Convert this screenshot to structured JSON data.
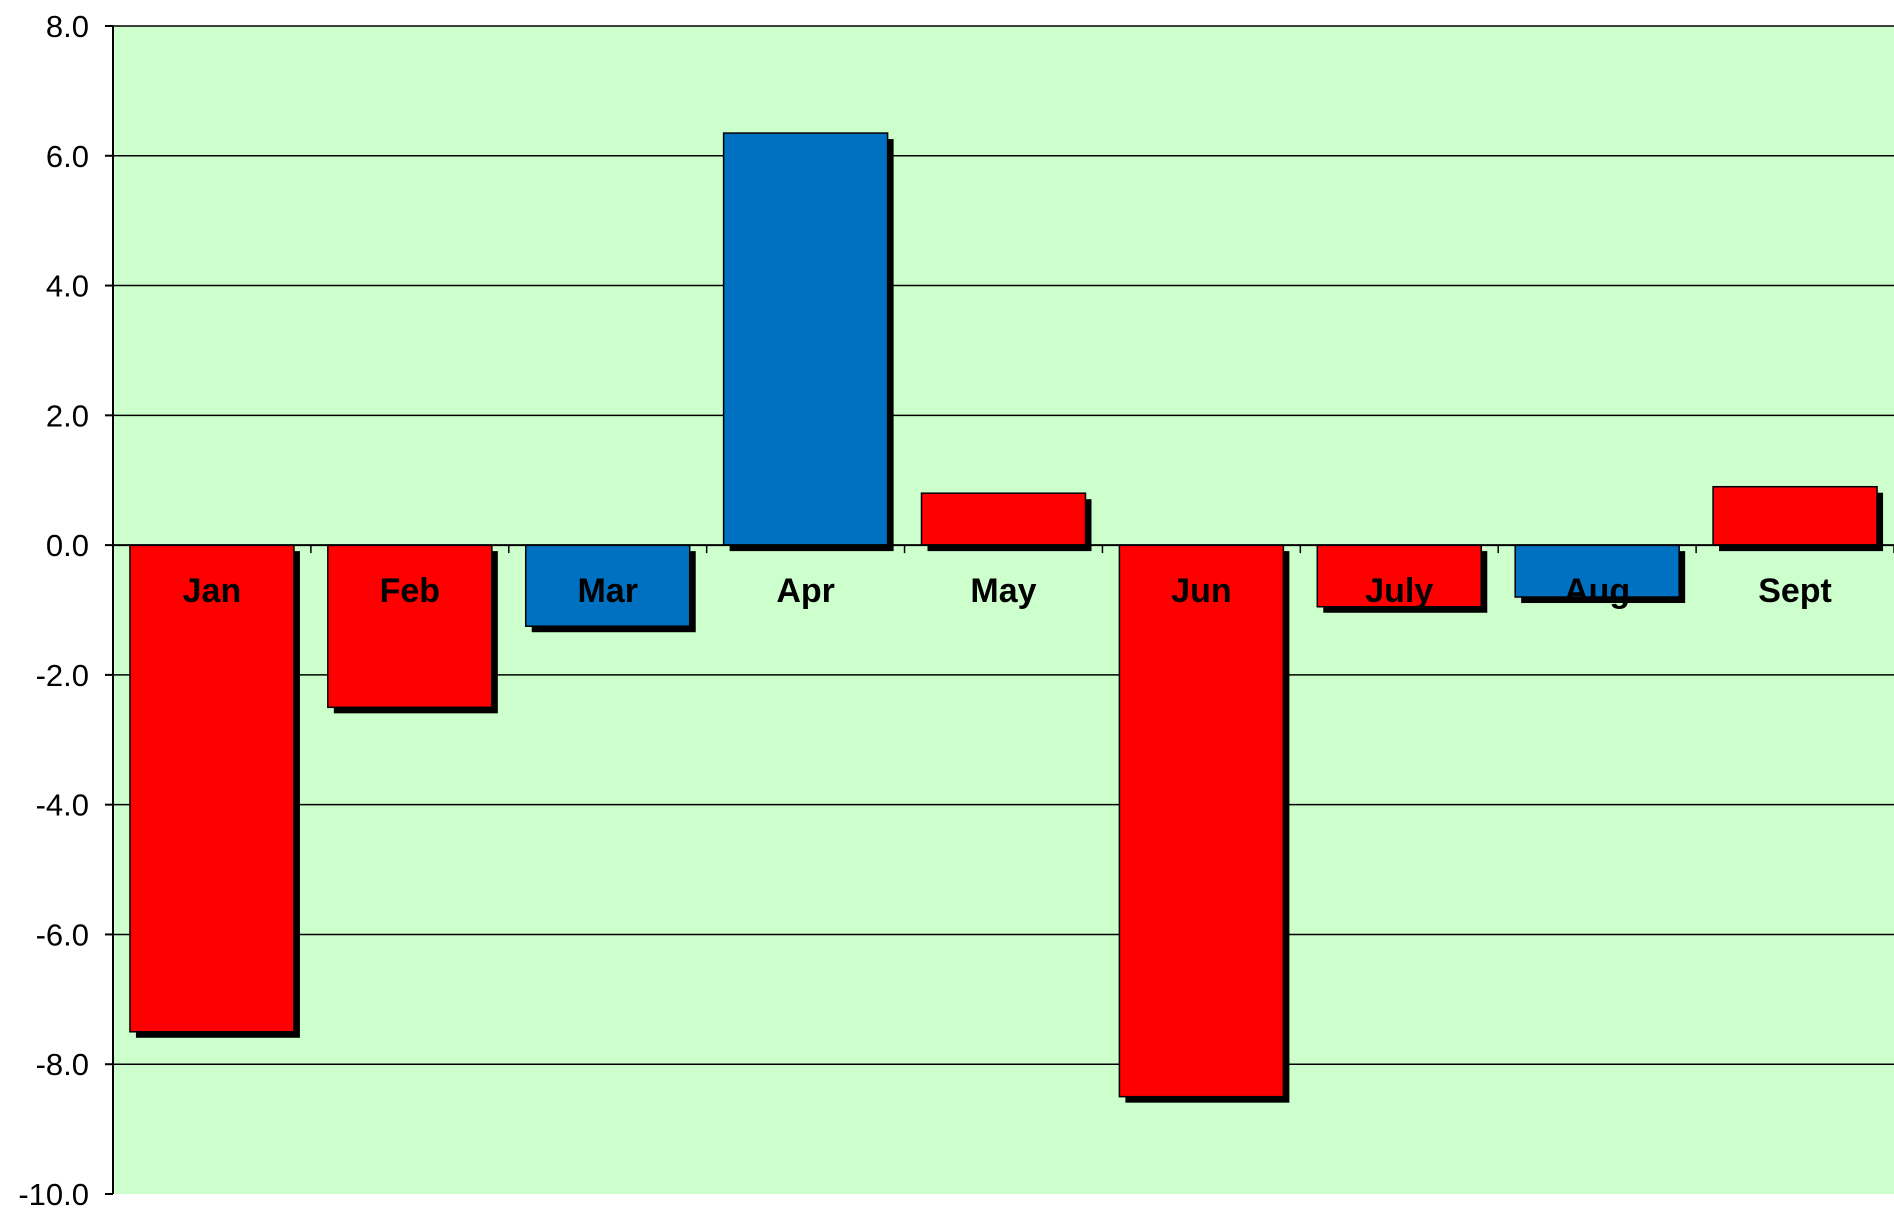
{
  "chart_data": {
    "type": "bar",
    "title": "",
    "xlabel": "",
    "ylabel": "",
    "categories": [
      "Jan",
      "Feb",
      "Mar",
      "Apr",
      "May",
      "Jun",
      "July",
      "Aug",
      "Sept"
    ],
    "values": [
      -7.5,
      -2.5,
      -1.25,
      6.35,
      0.8,
      -8.5,
      -0.95,
      -0.8,
      0.9
    ],
    "bar_colors": [
      "#ff0000",
      "#ff0000",
      "#0070c0",
      "#0070c0",
      "#ff0000",
      "#ff0000",
      "#ff0000",
      "#0070c0",
      "#ff0000"
    ],
    "ylim": [
      -10,
      8
    ],
    "yticks": [
      8,
      6,
      4,
      2,
      0,
      -2,
      -4,
      -6,
      -8,
      -10
    ],
    "ytick_labels": [
      "8.0",
      "6.0",
      "4.0",
      "2.0",
      "0.0",
      "-2.0",
      "-4.0",
      "-6.0",
      "-8.0",
      "-10.0"
    ],
    "grid": true,
    "legend": "none",
    "plot_background": "#ccffcc",
    "shadow_color": "#000000"
  }
}
